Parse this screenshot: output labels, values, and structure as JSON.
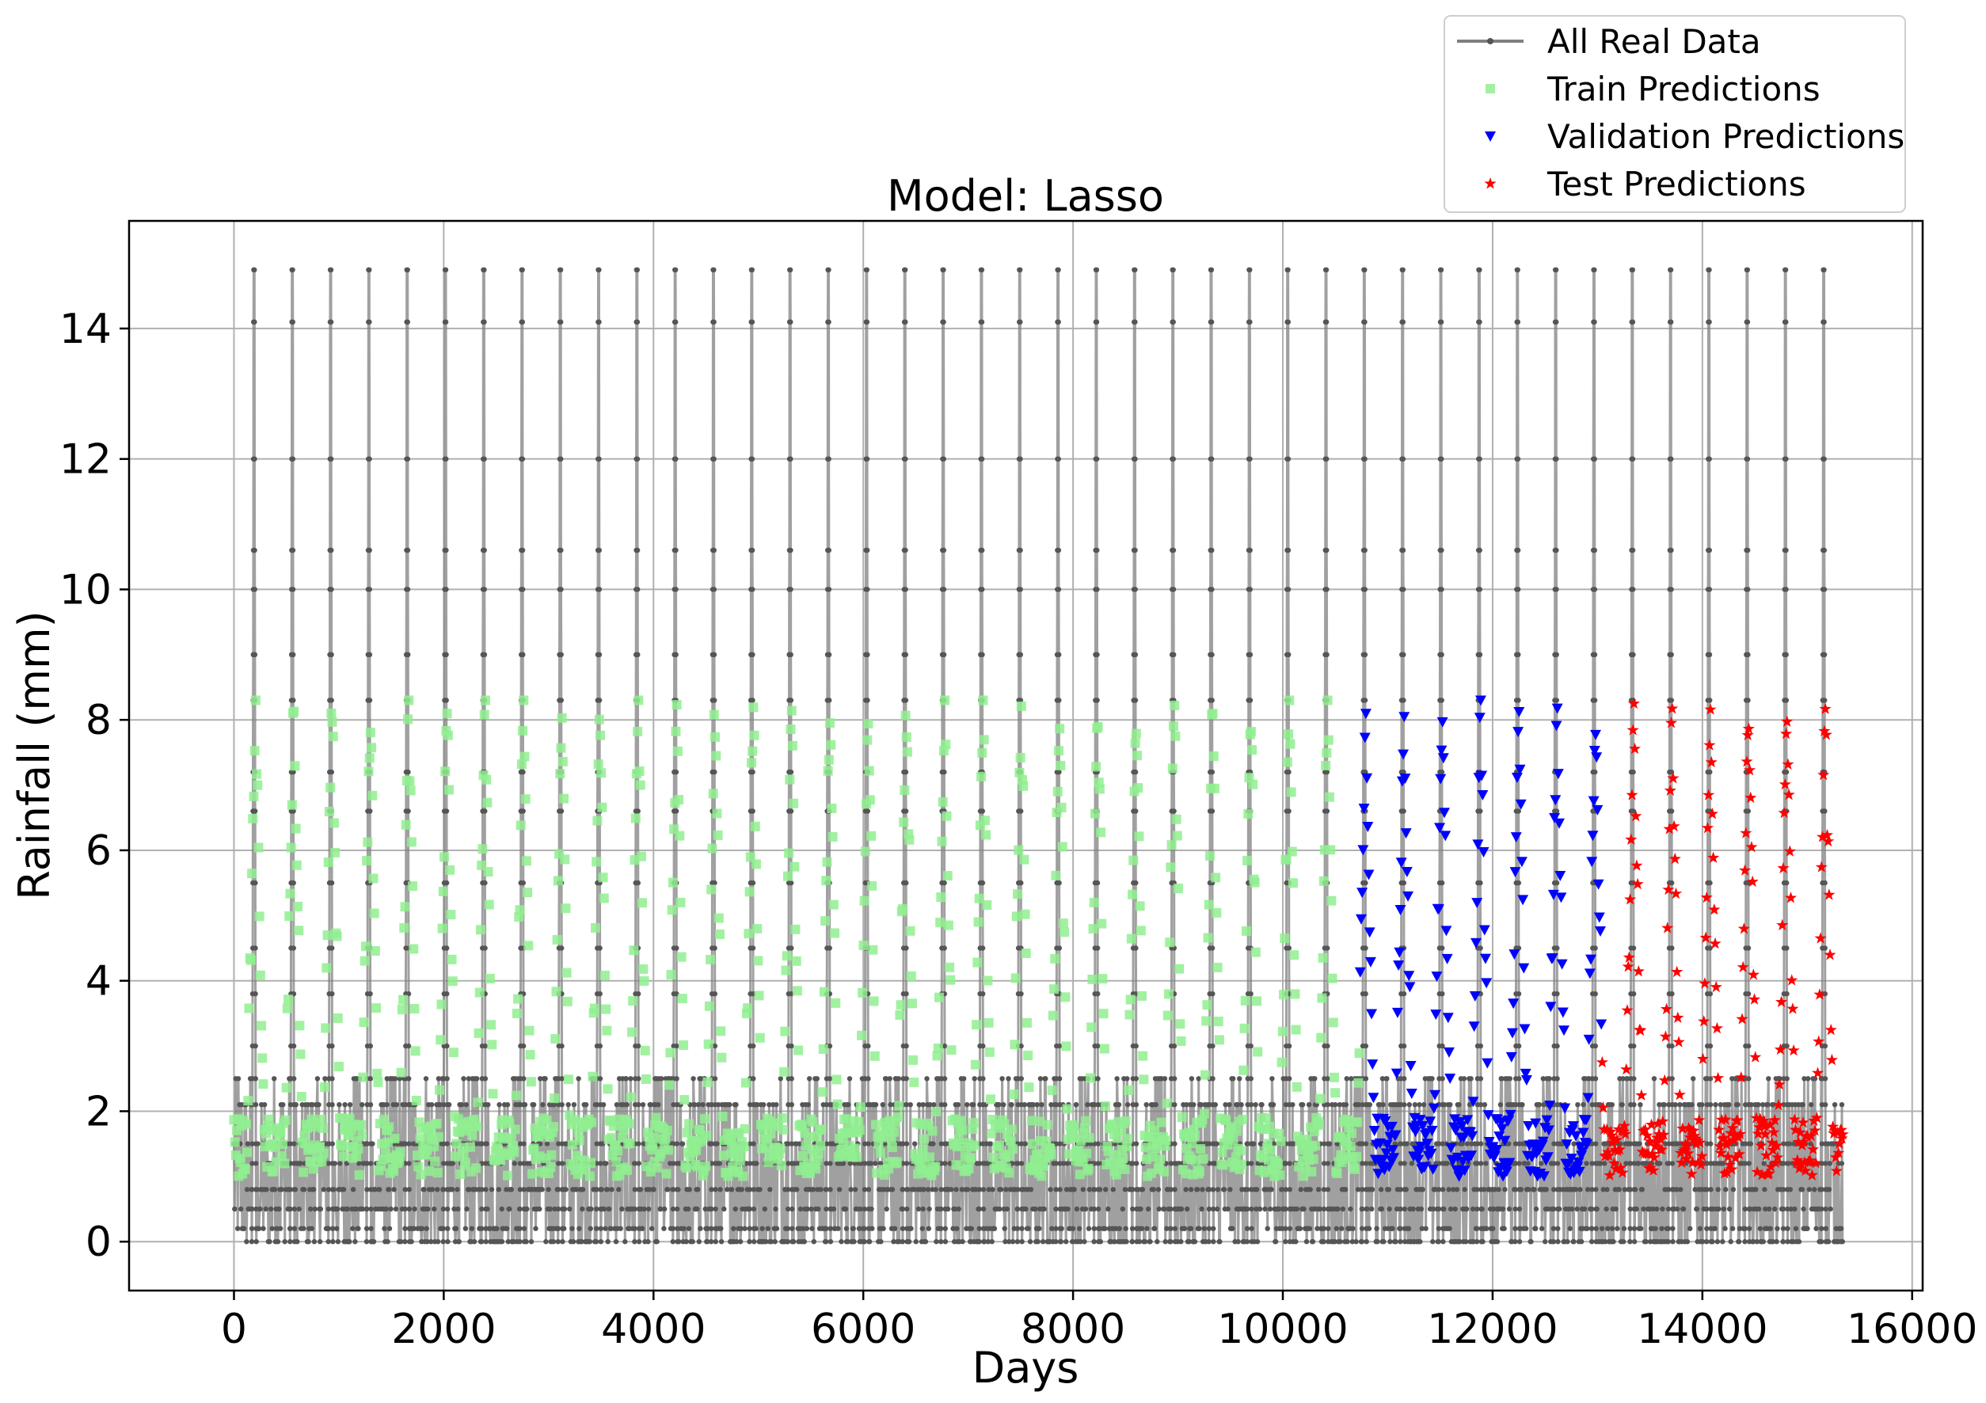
{
  "chart_data": {
    "type": "line",
    "title": "Model: Lasso",
    "xlabel": "Days",
    "ylabel": "Rainfall (mm)",
    "xlim": [
      -1000,
      16100
    ],
    "ylim": [
      -0.75,
      15.65
    ],
    "xticks": [
      0,
      2000,
      4000,
      6000,
      8000,
      10000,
      12000,
      14000,
      16000
    ],
    "yticks": [
      0,
      2,
      4,
      6,
      8,
      10,
      12,
      14
    ],
    "grid": true,
    "legend_position": "upper-right",
    "x_range": [
      0,
      15340
    ],
    "cycle_length_days": 365,
    "series": [
      {
        "name": "All Real Data",
        "marker": "line-dot",
        "color": "#808080",
        "x_range": [
          0,
          15340
        ],
        "annual_peak_values": [
          14.9,
          14.1,
          12.0,
          10.6,
          10.0,
          9.0,
          8.3,
          7.2,
          6.6,
          5.5,
          4.5,
          3.8,
          3.0,
          2.5,
          2.1,
          1.5,
          1.2,
          0.8,
          0.5,
          0.2,
          0.0
        ]
      },
      {
        "name": "Train Predictions",
        "marker": "square",
        "color": "#90ee90",
        "x_range": [
          0,
          10738
        ],
        "value_range": [
          0.9,
          8.3
        ]
      },
      {
        "name": "Validation Predictions",
        "marker": "triangle-down",
        "color": "#0000ff",
        "x_range": [
          10738,
          13039
        ],
        "value_range": [
          1.0,
          8.3
        ]
      },
      {
        "name": "Test Predictions",
        "marker": "star",
        "color": "#ff0000",
        "x_range": [
          13039,
          15340
        ],
        "value_range": [
          0.8,
          8.3
        ]
      }
    ]
  }
}
